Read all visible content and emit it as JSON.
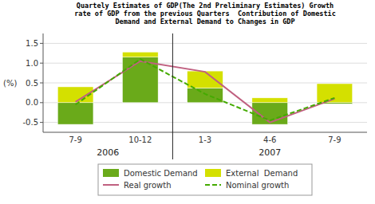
{
  "chart_data": {
    "type": "bar",
    "title": "Quartely Estimates of GDP(The 2nd Preliminary Estimates) Growth\nrate of GDP from the previous Quarters  Contribution of Domestic\nDemand and External Demand to Changes in GDP",
    "y_label": "(%)",
    "categories": [
      "7-9",
      "10-12",
      "1-3",
      "4-6",
      "7-9"
    ],
    "series": [
      {
        "name": "Domestic Demand",
        "type": "bar",
        "color": "#6aaa1a",
        "values": [
          -0.55,
          1.15,
          0.37,
          -0.55,
          -0.03
        ]
      },
      {
        "name": "External  Demand",
        "type": "bar",
        "color": "#d4e000",
        "values": [
          0.4,
          0.13,
          0.43,
          0.12,
          0.48
        ]
      },
      {
        "name": "Real growth",
        "type": "line",
        "line_style": "solid",
        "color": "#c06080",
        "values": [
          0.02,
          1.05,
          0.78,
          -0.5,
          0.1
        ]
      },
      {
        "name": "Nominal growth",
        "type": "line",
        "line_style": "dashed",
        "color": "#44aa00",
        "values": [
          -0.05,
          1.1,
          0.22,
          -0.45,
          0.12
        ]
      }
    ],
    "stacked": true,
    "annotations": [
      {
        "text": "2006",
        "first": 0,
        "last": 1
      },
      {
        "text": "2007",
        "first": 2,
        "last": 4
      }
    ],
    "ylim": [
      -0.75,
      1.75
    ],
    "yticks": [
      -0.5,
      {
        "value": 0.0,
        "label": "0.0"
      },
      0.5,
      {
        "value": 1.0,
        "label": "1.0"
      },
      1.5
    ],
    "grid": true,
    "legend": "bottom"
  }
}
